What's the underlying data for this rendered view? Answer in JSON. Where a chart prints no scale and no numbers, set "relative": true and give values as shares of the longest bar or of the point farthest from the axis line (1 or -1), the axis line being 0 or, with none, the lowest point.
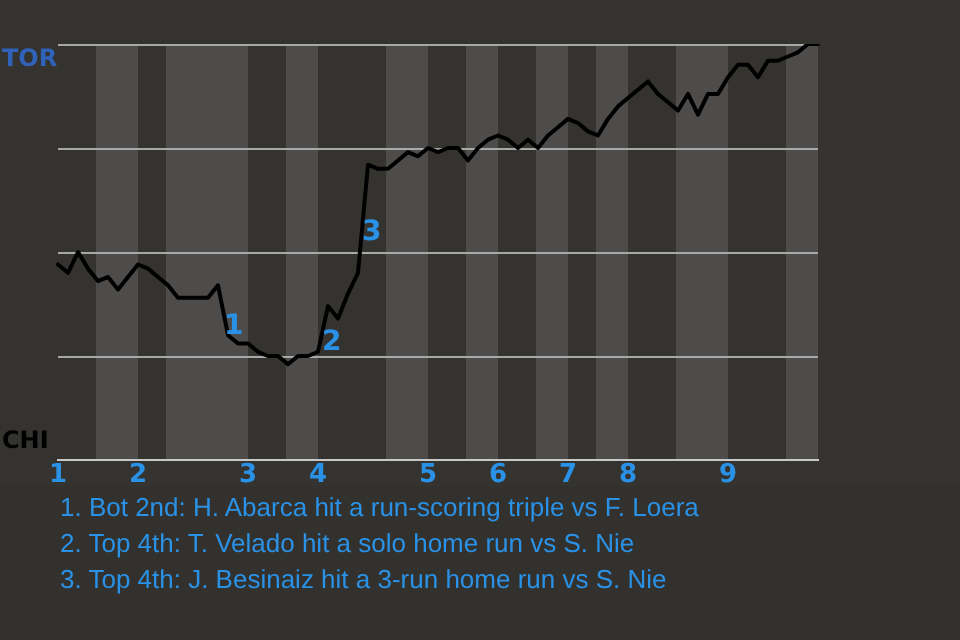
{
  "chart_data": {
    "type": "line",
    "relative": true,
    "legend": false,
    "marker": "none",
    "line_style": "solid",
    "categories": [
      "1",
      null,
      null,
      null,
      null,
      null,
      null,
      null,
      "2",
      null,
      null,
      null,
      null,
      null,
      null,
      null,
      null,
      null,
      null,
      "3",
      null,
      null,
      null,
      null,
      null,
      null,
      "4",
      null,
      null,
      null,
      null,
      null,
      null,
      null,
      null,
      null,
      null,
      "5",
      null,
      null,
      null,
      null,
      null,
      null,
      "6",
      null,
      null,
      null,
      null,
      null,
      null,
      "7",
      null,
      null,
      null,
      null,
      null,
      "8",
      null,
      null,
      null,
      null,
      null,
      null,
      null,
      null,
      null,
      "9",
      null,
      null,
      null,
      null,
      null,
      null,
      null,
      null,
      null
    ],
    "series": [
      {
        "color": "#000000",
        "values": [
          0.47,
          0.45,
          0.5,
          0.46,
          0.43,
          0.44,
          0.41,
          0.44,
          0.47,
          0.46,
          0.44,
          0.42,
          0.39,
          0.39,
          0.39,
          0.39,
          0.42,
          0.3,
          0.28,
          0.28,
          0.26,
          0.25,
          0.25,
          0.23,
          0.25,
          0.25,
          0.26,
          0.37,
          0.34,
          0.4,
          0.45,
          0.71,
          0.7,
          0.7,
          0.72,
          0.74,
          0.73,
          0.75,
          0.74,
          0.75,
          0.75,
          0.72,
          0.75,
          0.77,
          0.78,
          0.77,
          0.75,
          0.77,
          0.75,
          0.78,
          0.8,
          0.82,
          0.81,
          0.79,
          0.78,
          0.82,
          0.85,
          0.87,
          0.89,
          0.91,
          0.88,
          0.86,
          0.84,
          0.88,
          0.83,
          0.88,
          0.88,
          0.92,
          0.95,
          0.95,
          0.92,
          0.96,
          0.96,
          0.97,
          0.98,
          1,
          1
        ]
      }
    ],
    "annotations": [
      "TOR",
      "CHI",
      "1",
      "2",
      "3",
      "1. Bot 2nd: H. Abarca hit a run-scoring triple vs F. Loera",
      "2. Top 4th: T. Velado hit a solo home run vs S. Nie",
      "3. Top 4th: J. Besinaiz hit a 3-run home run vs S. Nie"
    ]
  }
}
